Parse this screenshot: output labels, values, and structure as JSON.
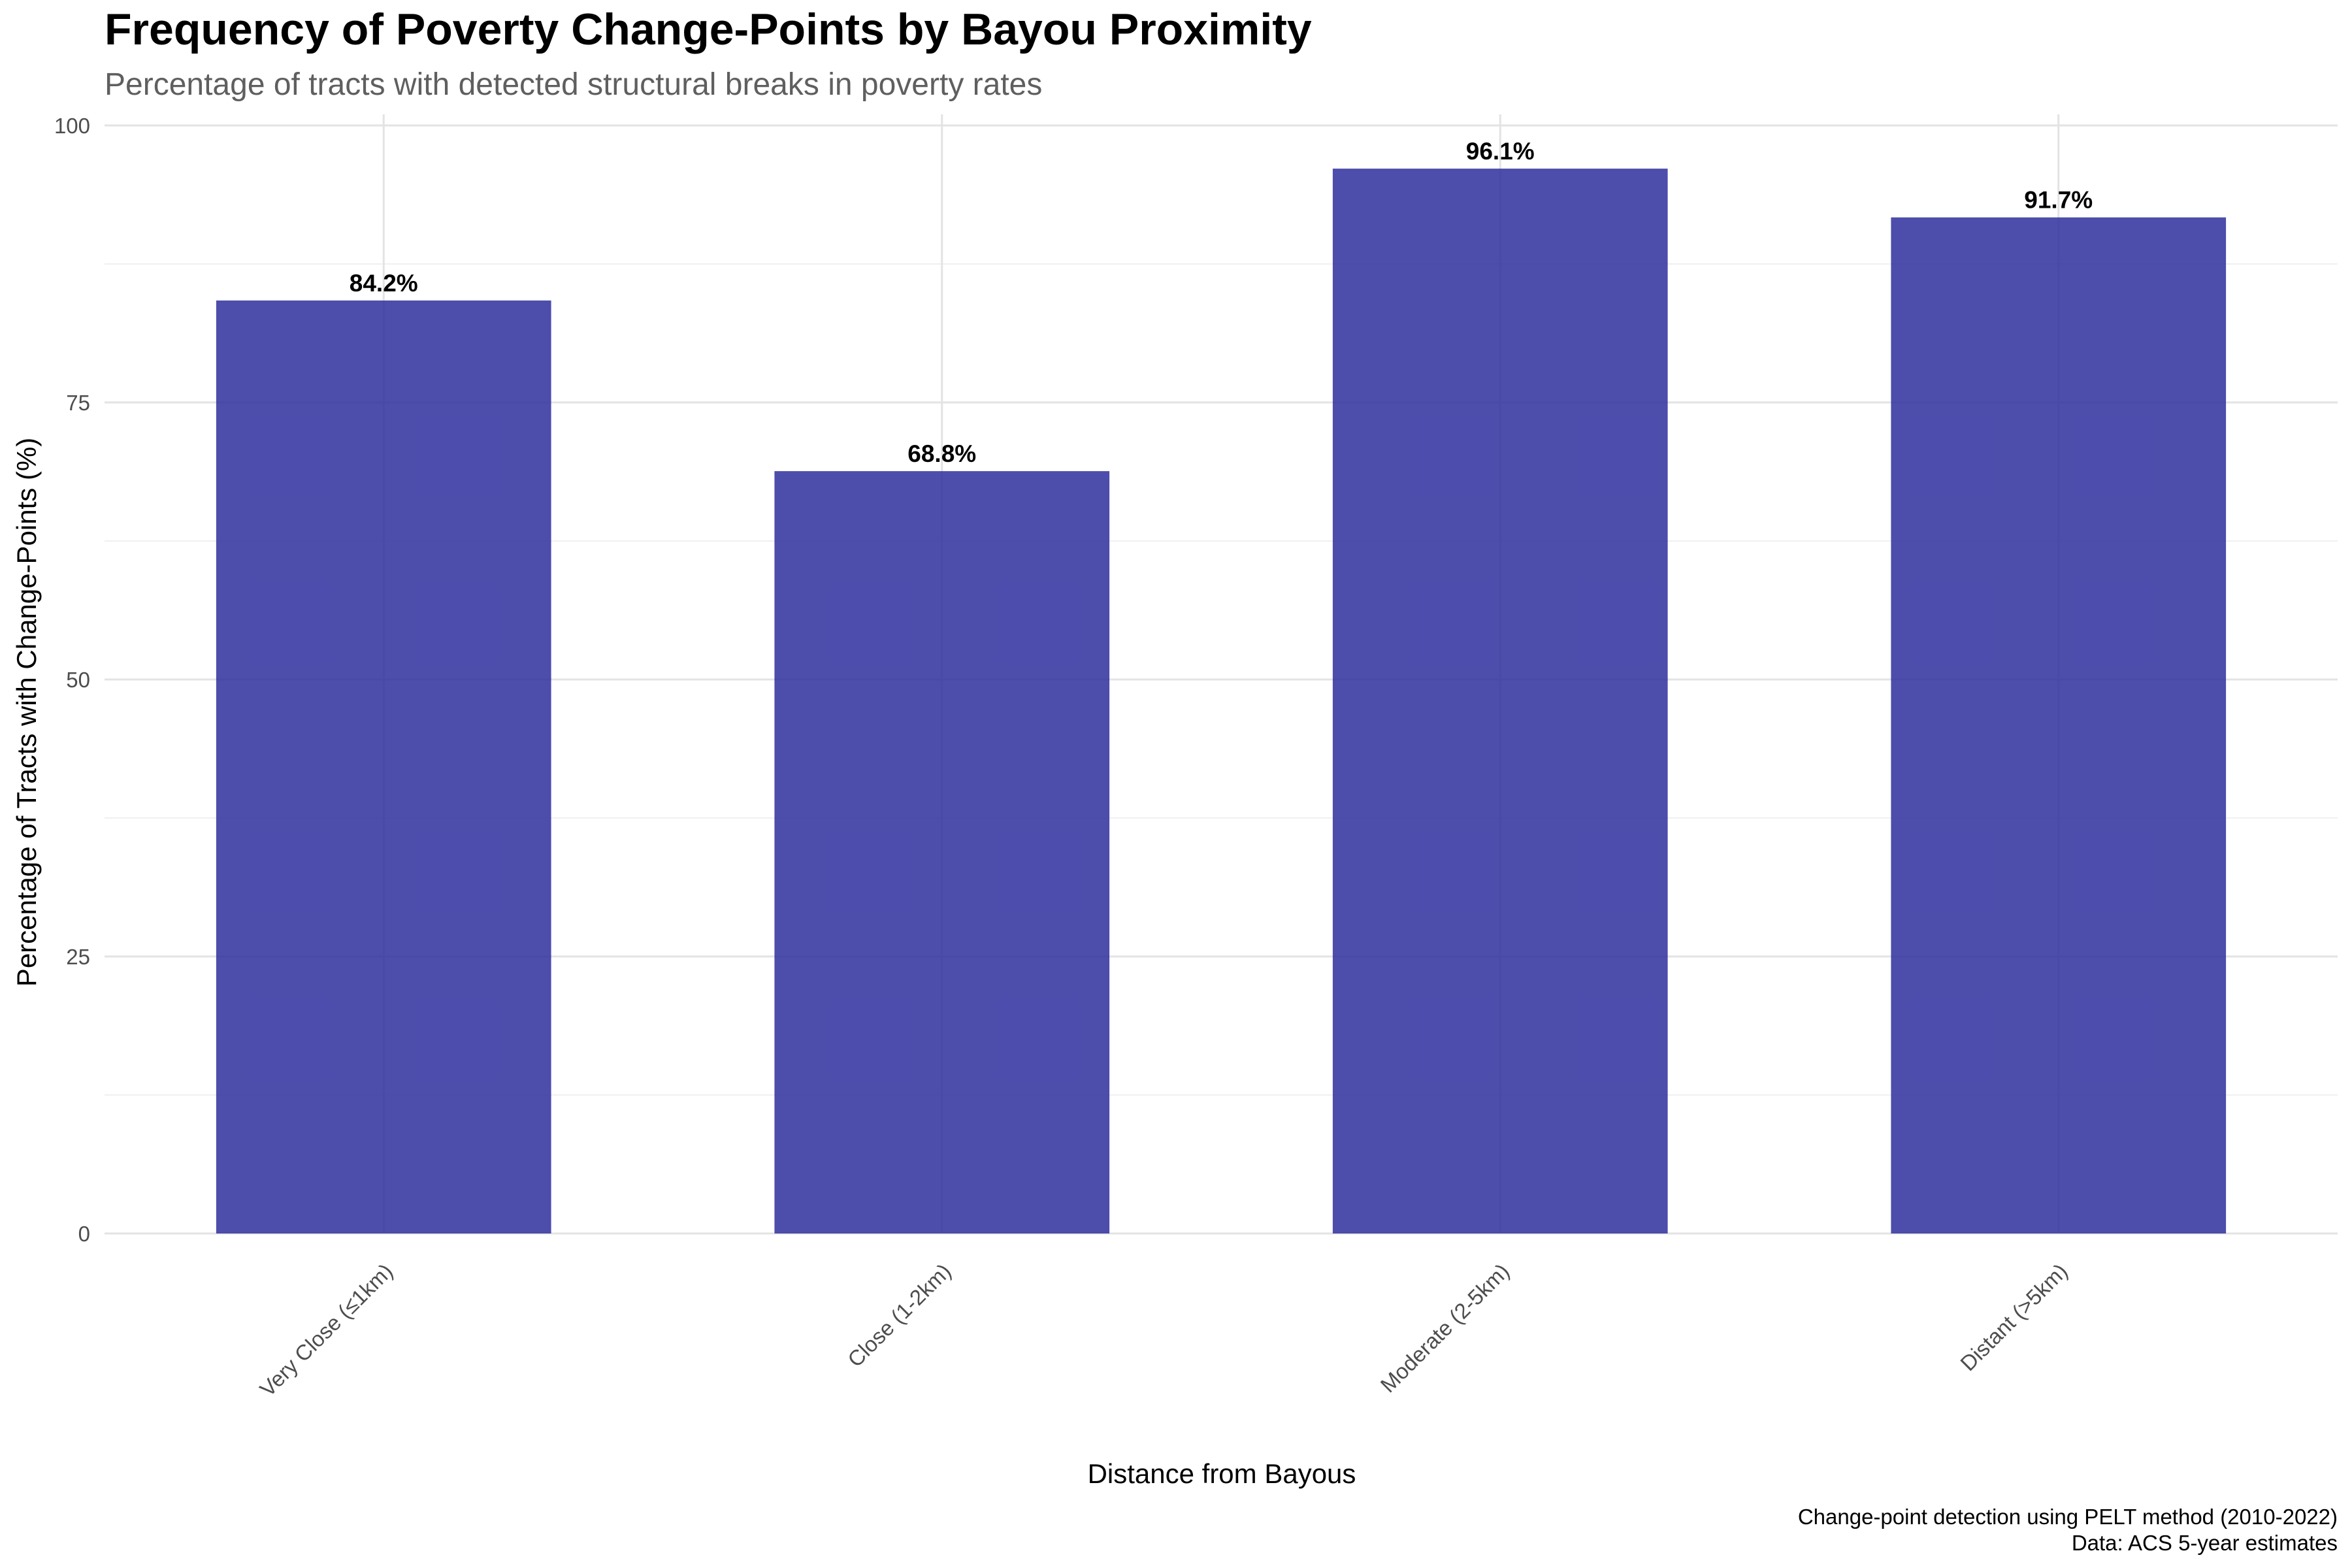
{
  "chart_data": {
    "type": "bar",
    "title": "Frequency of Poverty Change-Points by Bayou Proximity",
    "subtitle": "Percentage of tracts with detected structural breaks in poverty rates",
    "xlabel": "Distance from Bayous",
    "ylabel": "Percentage of Tracts with Change-Points (%)",
    "categories": [
      "Very Close (≤1km)",
      "Close (1-2km)",
      "Moderate (2-5km)",
      "Distant (>5km)"
    ],
    "values": [
      84.2,
      68.8,
      96.1,
      91.7
    ],
    "value_labels": [
      "84.2%",
      "68.8%",
      "96.1%",
      "91.7%"
    ],
    "ylim": [
      0,
      101
    ],
    "y_ticks": [
      0,
      25,
      50,
      75,
      100
    ],
    "grid": true,
    "bar_color": "#2e2e9e",
    "caption": [
      "Change-point detection using PELT method (2010-2022)",
      "Data: ACS 5-year estimates"
    ]
  }
}
